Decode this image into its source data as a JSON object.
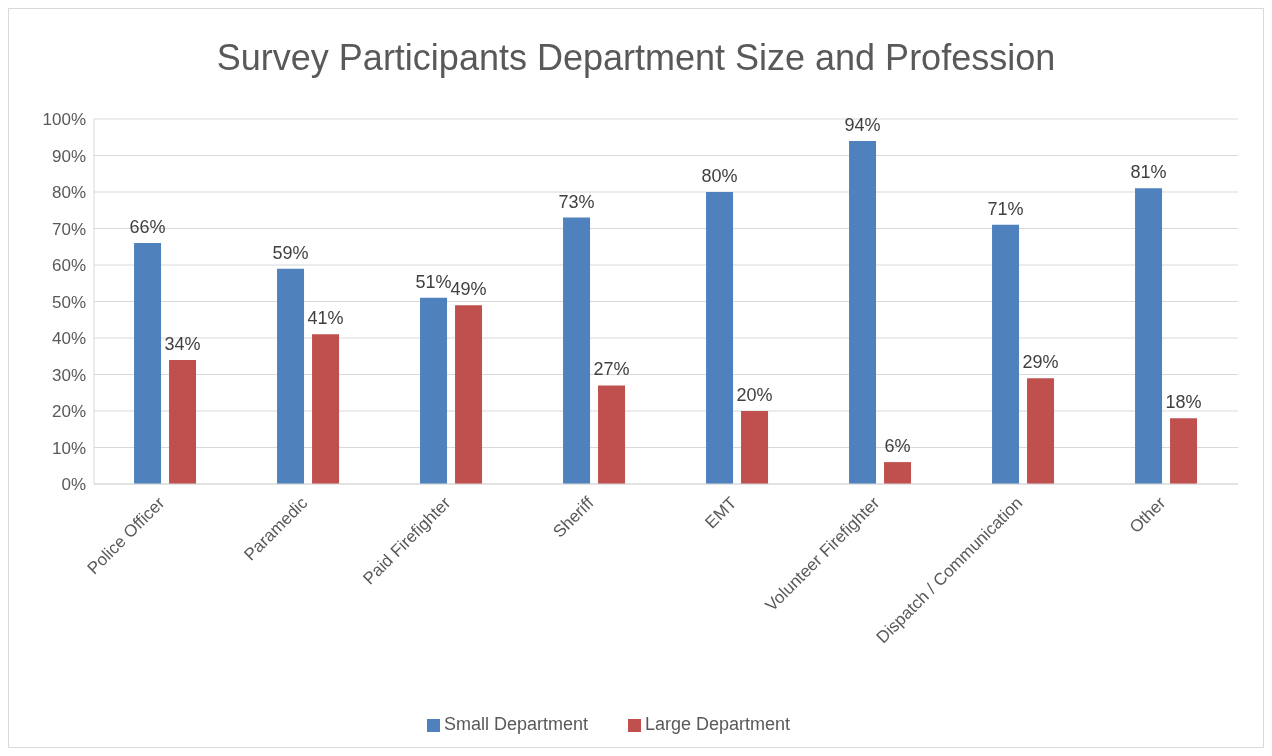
{
  "chart_data": {
    "type": "bar",
    "title": "Survey Participants Department Size and Profession",
    "categories": [
      "Police Officer",
      "Paramedic",
      "Paid Firefighter",
      "Sheriff",
      "EMT",
      "Volunteer Firefighter",
      "Dispatch / Communication",
      "Other"
    ],
    "series": [
      {
        "name": "Small Department",
        "color": "#4f81bd",
        "values": [
          66,
          59,
          51,
          73,
          80,
          94,
          71,
          81
        ],
        "value_labels": [
          "66%",
          "59%",
          "51%",
          "73%",
          "80%",
          "94%",
          "71%",
          "81%"
        ]
      },
      {
        "name": "Large Department",
        "color": "#c0504d",
        "values": [
          34,
          41,
          49,
          27,
          20,
          6,
          29,
          18
        ],
        "value_labels": [
          "34%",
          "41%",
          "49%",
          "27%",
          "20%",
          "6%",
          "29%",
          "18%"
        ]
      }
    ],
    "ylim": [
      0,
      100
    ],
    "yticks": [
      {
        "value": 0,
        "label": "0%"
      },
      {
        "value": 10,
        "label": "10%"
      },
      {
        "value": 20,
        "label": "20%"
      },
      {
        "value": 30,
        "label": "30%"
      },
      {
        "value": 40,
        "label": "40%"
      },
      {
        "value": 50,
        "label": "50%"
      },
      {
        "value": 60,
        "label": "60%"
      },
      {
        "value": 70,
        "label": "70%"
      },
      {
        "value": 80,
        "label": "80%"
      },
      {
        "value": 90,
        "label": "90%"
      },
      {
        "value": 100,
        "label": "100%"
      }
    ],
    "grid": "y",
    "legend": "bottom"
  }
}
